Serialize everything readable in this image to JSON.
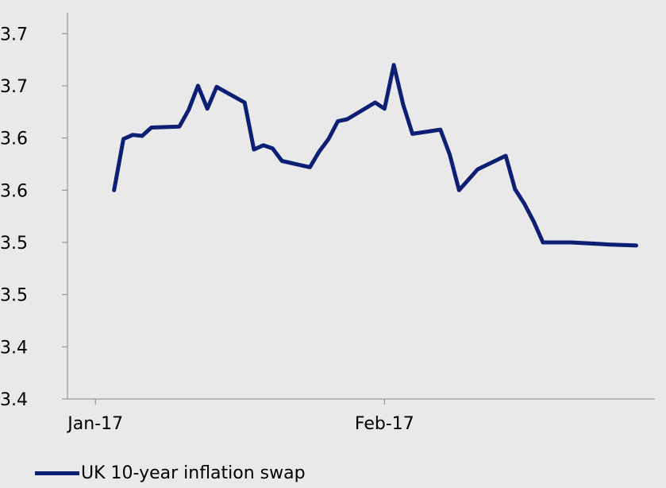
{
  "chart_data": {
    "type": "line",
    "title": "",
    "xlabel": "",
    "ylabel": "",
    "ylim": [
      3.38,
      3.75
    ],
    "xlim": [
      -3,
      60
    ],
    "y_ticks": [
      {
        "value": 3.38,
        "label": "3.4"
      },
      {
        "value": 3.43,
        "label": "3.4"
      },
      {
        "value": 3.48,
        "label": "3.5"
      },
      {
        "value": 3.53,
        "label": "3.5"
      },
      {
        "value": 3.58,
        "label": "3.6"
      },
      {
        "value": 3.63,
        "label": "3.6"
      },
      {
        "value": 3.68,
        "label": "3.7"
      },
      {
        "value": 3.73,
        "label": "3.7"
      }
    ],
    "x_ticks": [
      {
        "value": 0,
        "label": "Jan-17"
      },
      {
        "value": 31,
        "label": "Feb-17"
      }
    ],
    "grid": false,
    "legend_position": "bottom",
    "series": [
      {
        "name": "UK 10-year inflation swap",
        "color": "#0d1f73",
        "x": [
          2,
          3,
          4,
          5,
          6,
          9,
          10,
          11,
          12,
          13,
          16,
          17,
          18,
          19,
          20,
          23,
          24,
          25,
          26,
          27,
          30,
          31,
          32,
          33,
          34,
          37,
          38,
          39,
          41,
          44,
          45,
          46,
          47,
          48,
          51,
          52,
          53,
          54,
          55,
          58
        ],
        "y": [
          3.58,
          3.629,
          3.633,
          3.632,
          3.64,
          3.641,
          3.657,
          3.68,
          3.658,
          3.679,
          3.664,
          3.619,
          3.623,
          3.62,
          3.608,
          3.602,
          3.617,
          3.629,
          3.646,
          3.648,
          3.664,
          3.658,
          3.7,
          3.662,
          3.634,
          3.638,
          3.614,
          3.58,
          3.6,
          3.613,
          3.581,
          3.567,
          3.55,
          3.53,
          3.53,
          3.5295,
          3.529,
          3.5285,
          3.528,
          3.527
        ]
      }
    ]
  }
}
